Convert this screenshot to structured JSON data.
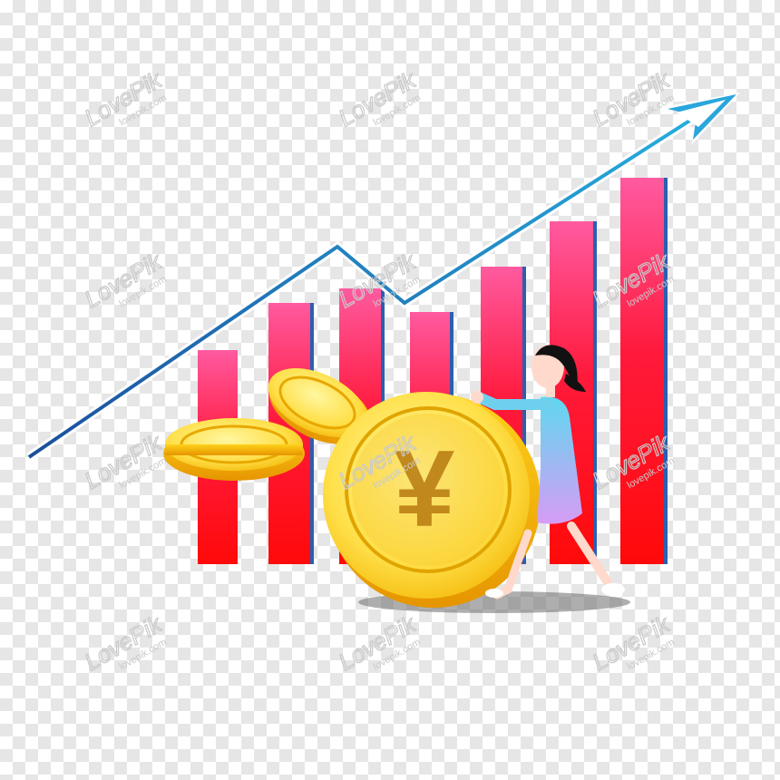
{
  "illustration": {
    "currency_symbol": "¥",
    "colors": {
      "bar_top": "#ff5aa0",
      "bar_bottom": "#ff0a0a",
      "arrow": "#1f7fc0",
      "coin_light": "#fff27a",
      "coin_dark": "#f2b400",
      "dress_top": "#5ed8f0",
      "dress_bottom": "#d79cf5",
      "hair": "#111111",
      "skin": "#ffd9cc"
    },
    "bar_heights": [
      0.42,
      0.56,
      0.58,
      0.52,
      0.66,
      0.79,
      0.89
    ]
  },
  "watermark": {
    "brand": "LovePik",
    "url": "lovepik.com"
  }
}
